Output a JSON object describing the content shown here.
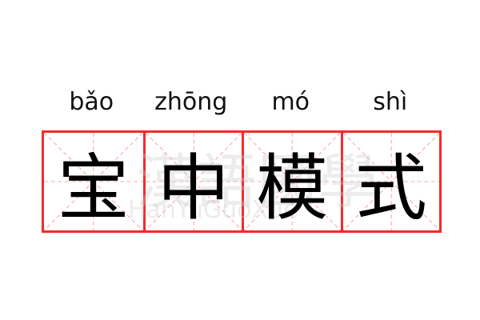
{
  "characters": [
    {
      "pinyin": "bǎo",
      "hanzi": "宝"
    },
    {
      "pinyin": "zhōng",
      "hanzi": "中"
    },
    {
      "pinyin": "mó",
      "hanzi": "模"
    },
    {
      "pinyin": "shì",
      "hanzi": "式"
    }
  ],
  "watermark": {
    "chinese": "漢語國學",
    "latin": "HanYuGuoXue"
  },
  "colors": {
    "border": "#f52a2a",
    "guide": "#f8a8a8",
    "text": "#000000"
  }
}
